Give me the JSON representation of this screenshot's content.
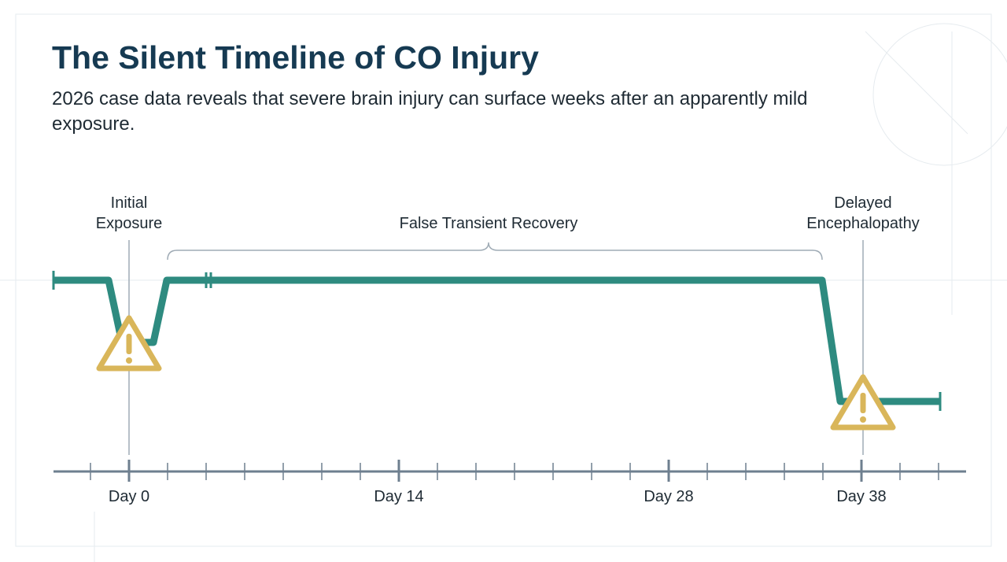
{
  "header": {
    "title": "The Silent Timeline of CO Injury",
    "subtitle": "2026 case data reveals that severe brain injury can surface weeks after an apparently mild exposure."
  },
  "events": [
    {
      "lines": [
        "Initial",
        "Exposure"
      ]
    },
    {
      "lines": [
        "False Transient Recovery"
      ]
    },
    {
      "lines": [
        "Delayed",
        "Encephalopathy"
      ]
    }
  ],
  "axis": {
    "labels": [
      "Day 0",
      "Day 14",
      "Day 28",
      "Day 38"
    ]
  }
}
